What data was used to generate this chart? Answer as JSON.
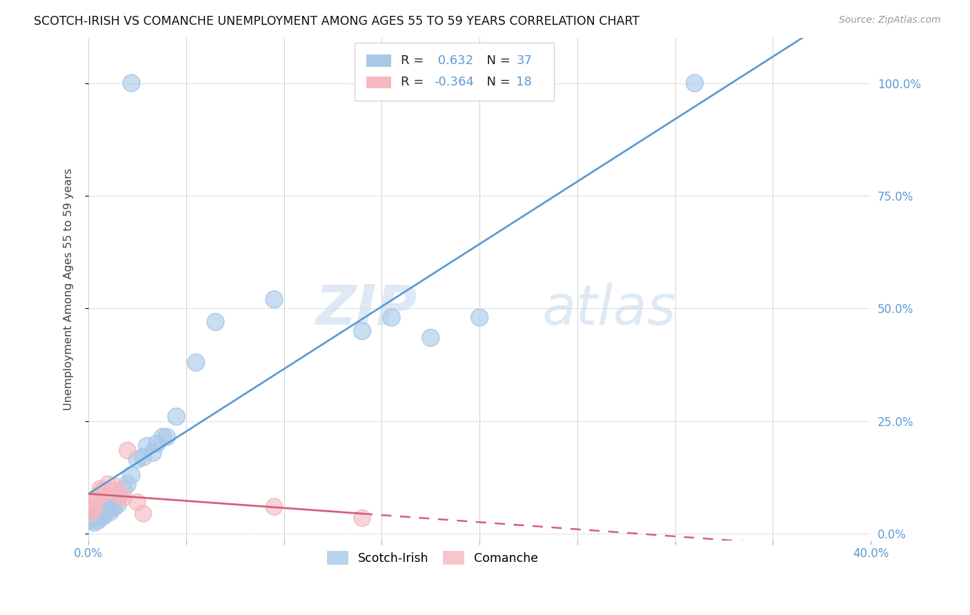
{
  "title": "SCOTCH-IRISH VS COMANCHE UNEMPLOYMENT AMONG AGES 55 TO 59 YEARS CORRELATION CHART",
  "source": "Source: ZipAtlas.com",
  "ylabel": "Unemployment Among Ages 55 to 59 years",
  "xlim": [
    0.0,
    0.4
  ],
  "ylim": [
    0.0,
    1.1
  ],
  "xticks": [
    0.0,
    0.05,
    0.1,
    0.15,
    0.2,
    0.25,
    0.3,
    0.35,
    0.4
  ],
  "ytick_labels": [
    "0.0%",
    "25.0%",
    "50.0%",
    "75.0%",
    "100.0%"
  ],
  "yticks": [
    0.0,
    0.25,
    0.5,
    0.75,
    1.0
  ],
  "scotch_irish_color": "#a8c8e8",
  "comanche_color": "#f4b8c0",
  "trend_blue": "#5b9bd5",
  "trend_pink": "#d45f7a",
  "R_blue": 0.632,
  "N_blue": 37,
  "R_pink": -0.364,
  "N_pink": 18,
  "scotch_irish_x": [
    0.001,
    0.002,
    0.003,
    0.003,
    0.004,
    0.005,
    0.005,
    0.006,
    0.007,
    0.008,
    0.009,
    0.01,
    0.011,
    0.012,
    0.013,
    0.015,
    0.016,
    0.018,
    0.02,
    0.022,
    0.025,
    0.028,
    0.03,
    0.033,
    0.035,
    0.038,
    0.04,
    0.045,
    0.055,
    0.065,
    0.095,
    0.14,
    0.155,
    0.175,
    0.2,
    0.022,
    0.31
  ],
  "scotch_irish_y": [
    0.03,
    0.035,
    0.025,
    0.04,
    0.038,
    0.03,
    0.042,
    0.045,
    0.038,
    0.04,
    0.05,
    0.055,
    0.048,
    0.06,
    0.058,
    0.065,
    0.085,
    0.1,
    0.11,
    0.13,
    0.165,
    0.17,
    0.195,
    0.18,
    0.2,
    0.215,
    0.215,
    0.26,
    0.38,
    0.47,
    0.52,
    0.45,
    0.48,
    0.435,
    0.48,
    1.0,
    1.0
  ],
  "comanche_x": [
    0.001,
    0.002,
    0.003,
    0.004,
    0.005,
    0.006,
    0.007,
    0.008,
    0.01,
    0.012,
    0.014,
    0.016,
    0.018,
    0.02,
    0.025,
    0.028,
    0.095,
    0.14
  ],
  "comanche_y": [
    0.045,
    0.06,
    0.055,
    0.075,
    0.08,
    0.1,
    0.095,
    0.09,
    0.11,
    0.095,
    0.105,
    0.085,
    0.08,
    0.185,
    0.07,
    0.045,
    0.06,
    0.035
  ],
  "watermark_zip": "ZIP",
  "watermark_atlas": "atlas",
  "background_color": "#ffffff"
}
